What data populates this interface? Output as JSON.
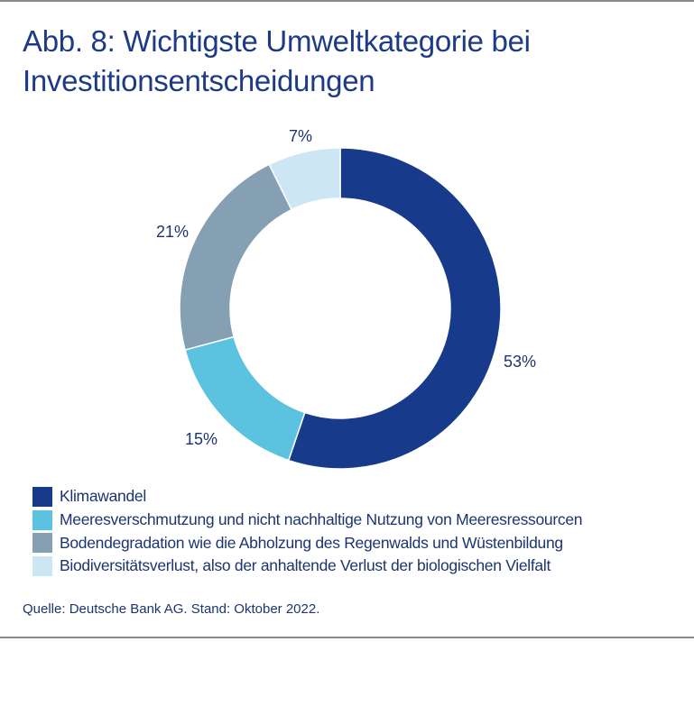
{
  "title": "Abb. 8: Wichtigste Umweltkategorie bei Investitionsentscheidungen",
  "source": "Quelle: Deutsche Bank AG. Stand: Oktober 2022.",
  "chart_data": {
    "type": "pie",
    "variant": "donut",
    "title": "Abb. 8: Wichtigste Umweltkategorie bei Investitionsentscheidungen",
    "categories": [
      "Klimawandel",
      "Meeresverschmutzung und nicht nachhaltige Nutzung von Meeresressourcen",
      "Bodendegradation wie die Abholzung des Regenwalds und Wüstenbildung",
      "Biodiversitätsverlust, also der anhaltende Verlust der biologischen Vielfalt"
    ],
    "values": [
      53,
      15,
      21,
      7
    ],
    "data_labels": [
      "53%",
      "15%",
      "21%",
      "7%"
    ],
    "colors": [
      "#173a8a",
      "#5bc2e0",
      "#859fb3",
      "#cce6f4"
    ],
    "legend_position": "bottom-left"
  }
}
